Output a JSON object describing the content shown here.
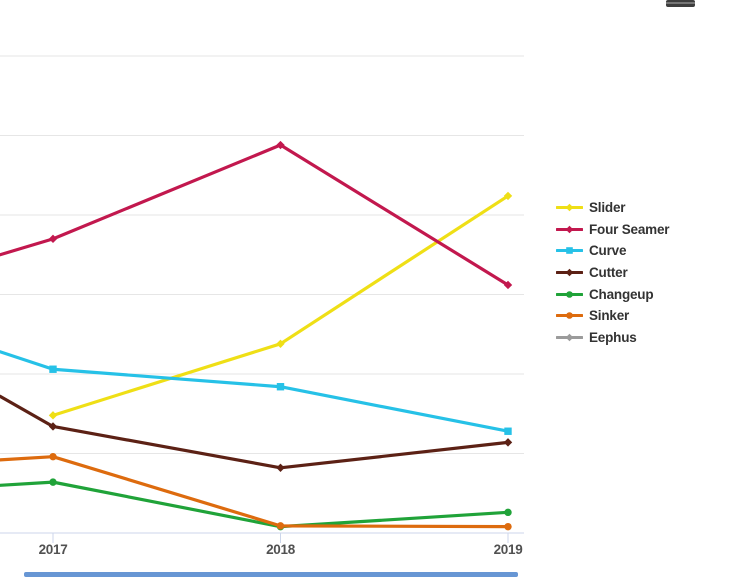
{
  "chart_data": {
    "type": "line",
    "title": "",
    "xlabel": "",
    "ylabel": "",
    "x": [
      2017,
      2018,
      2019
    ],
    "x_labels": [
      "2017",
      "2018",
      "2019"
    ],
    "y_axis": {
      "visible": false,
      "note": "y axis cropped off left edge; values estimated in percent, gridline step 5",
      "gridline_step": 5,
      "gridline_values": [
        5,
        10,
        15,
        20,
        25,
        30
      ],
      "range_shown": [
        0,
        33.5
      ]
    },
    "grid_color": "#e6e6e6",
    "axis_color": "#ccd6eb",
    "legend_position": "right",
    "series": [
      {
        "name": "Slider",
        "color": "#efdf16",
        "symbol": "diamond",
        "values": [
          7.4,
          11.9,
          21.2
        ],
        "edge_value": null
      },
      {
        "name": "Four Seamer",
        "color": "#c2184e",
        "symbol": "diamond",
        "values": [
          18.5,
          24.4,
          15.6
        ],
        "edge_value": 17.5
      },
      {
        "name": "Curve",
        "color": "#26c1e7",
        "symbol": "square",
        "values": [
          10.3,
          9.2,
          6.4
        ],
        "edge_value": 11.4
      },
      {
        "name": "Cutter",
        "color": "#5c2115",
        "symbol": "diamond",
        "values": [
          6.7,
          4.1,
          5.7
        ],
        "edge_value": 8.6
      },
      {
        "name": "Changeup",
        "color": "#20a339",
        "symbol": "circle",
        "values": [
          3.2,
          0.4,
          1.3
        ],
        "edge_value": 3.0
      },
      {
        "name": "Sinker",
        "color": "#dd6b0e",
        "symbol": "circle",
        "values": [
          4.8,
          0.45,
          0.4
        ],
        "edge_value": 4.6
      },
      {
        "name": "Eephus",
        "color": "#9b9b9b",
        "symbol": "diamond",
        "values": [],
        "edge_value": null
      }
    ]
  },
  "decor": {
    "scrollbar_color": "#4c84cc",
    "menu_icon": "hamburger-menu"
  }
}
